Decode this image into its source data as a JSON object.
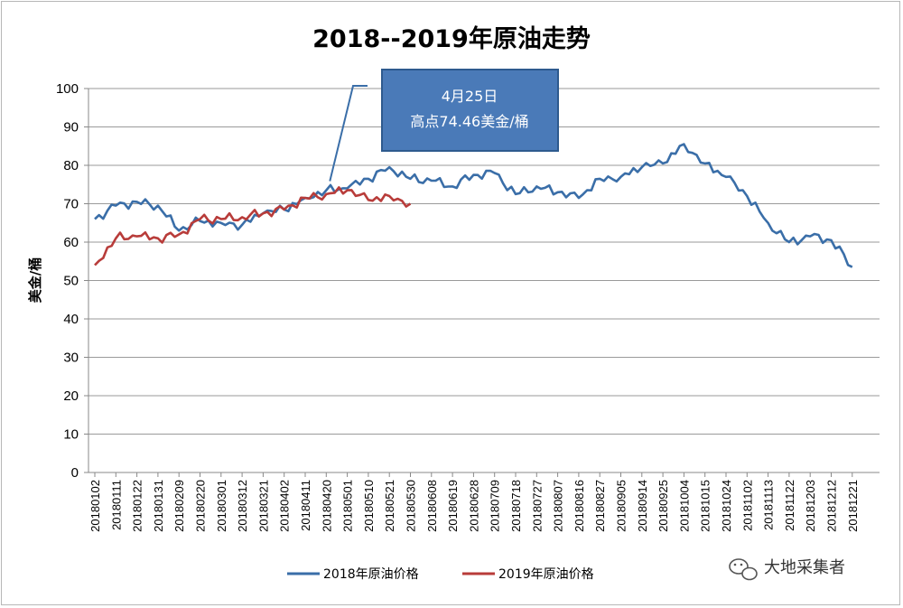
{
  "chart_data": {
    "type": "line",
    "title": "2018--2019年原油走势",
    "ylabel": "美金/桶",
    "xlabel": "",
    "ylim": [
      0,
      100
    ],
    "yticks": [
      0,
      10,
      20,
      30,
      40,
      50,
      60,
      70,
      80,
      90,
      100
    ],
    "grid": true,
    "legend_position": "bottom",
    "categories": [
      "20180102",
      "20180111",
      "20180122",
      "20180131",
      "20180209",
      "20180220",
      "20180301",
      "20180312",
      "20180321",
      "20180402",
      "20180411",
      "20180420",
      "20180501",
      "20180510",
      "20180521",
      "20180530",
      "20180608",
      "20180619",
      "20180628",
      "20180709",
      "20180718",
      "20180727",
      "20180807",
      "20180816",
      "20180827",
      "20180905",
      "20180914",
      "20180925",
      "20181004",
      "20181015",
      "20181024",
      "20181102",
      "20181113",
      "20181122",
      "20181203",
      "20181212",
      "20181221"
    ],
    "series": [
      {
        "name": "2018年原油价格",
        "color": "#3a6ea8",
        "values": [
          66.0,
          69.5,
          70.5,
          69.5,
          63.0,
          65.5,
          65.0,
          64.5,
          67.5,
          68.5,
          71.5,
          73.5,
          74.0,
          76.5,
          79.5,
          76.5,
          76.0,
          74.5,
          77.5,
          78.0,
          72.5,
          74.5,
          73.0,
          71.5,
          76.5,
          77.0,
          79.5,
          80.5,
          85.5,
          80.5,
          77.0,
          72.0,
          65.0,
          60.0,
          61.5,
          60.5,
          53.5
        ]
      },
      {
        "name": "2019年原油价格",
        "color": "#b83c3a",
        "values": [
          54.0,
          61.0,
          61.5,
          61.0,
          62.0,
          66.0,
          66.0,
          66.5,
          67.5,
          68.5,
          71.5,
          72.5,
          73.5,
          71.0,
          72.0,
          70.0,
          null,
          null,
          null,
          null,
          null,
          null,
          null,
          null,
          null,
          null,
          null,
          null,
          null,
          null,
          null,
          null,
          null,
          null,
          null,
          null,
          null
        ]
      }
    ],
    "annotations": [
      {
        "line1": "4月25日",
        "line2": "高点74.46美金/桶",
        "x": "20180420",
        "y": 74.46
      }
    ]
  },
  "watermark": {
    "icon": "wechat-icon",
    "text": "大地采集者"
  }
}
